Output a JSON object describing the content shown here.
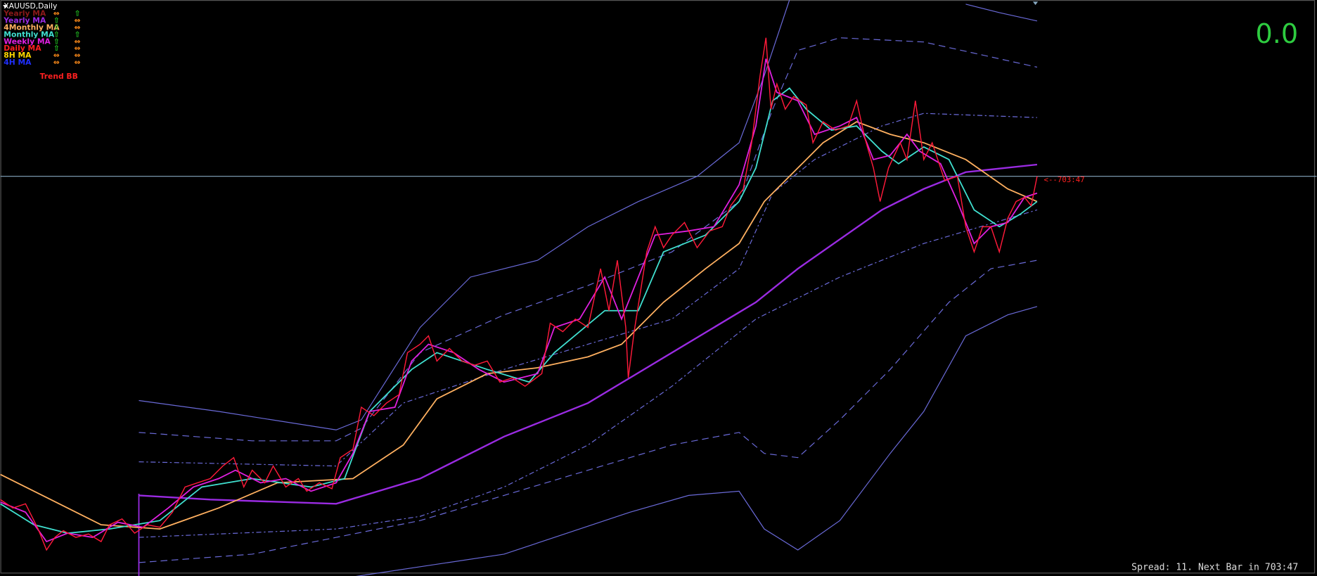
{
  "header": {
    "symbol": "XAUUSD,Daily"
  },
  "legend": {
    "rows": [
      {
        "label": "Yearly MA",
        "color": "#8b1a1a",
        "trend1": "⇔",
        "trend1_color": "#ff8c1a",
        "trend2": "⇧",
        "trend2_color": "#22c322"
      },
      {
        "label": "Yearly MA",
        "color": "#9a2be2",
        "trend1": "⇧",
        "trend1_color": "#22c322",
        "trend2": "⇔",
        "trend2_color": "#ff8c1a"
      },
      {
        "label": "4Monthly MA",
        "color": "#ffb060",
        "trend1": "⇧",
        "trend1_color": "#22c322",
        "trend2": "⇔",
        "trend2_color": "#ff8c1a"
      },
      {
        "label": "Monthly MA",
        "color": "#40e0d0",
        "trend1": "⇧",
        "trend1_color": "#22c322",
        "trend2": "⇧",
        "trend2_color": "#22c322"
      },
      {
        "label": "Weekly MA",
        "color": "#e020e0",
        "trend1": "⇧",
        "trend1_color": "#22c322",
        "trend2": "⇔",
        "trend2_color": "#ff8c1a"
      },
      {
        "label": "Daily MA",
        "color": "#ff2020",
        "trend1": "⇧",
        "trend1_color": "#22c322",
        "trend2": "⇔",
        "trend2_color": "#ff8c1a"
      },
      {
        "label": "8H MA",
        "color": "#ffd700",
        "trend1": "⇔",
        "trend1_color": "#ff8c1a",
        "trend2": "⇔",
        "trend2_color": "#ff8c1a"
      },
      {
        "label": "4H MA",
        "color": "#2030ff",
        "trend1": "⇔",
        "trend1_color": "#ff8c1a",
        "trend2": "⇔",
        "trend2_color": "#ff8c1a"
      }
    ]
  },
  "indicator": {
    "title": "Trend BB"
  },
  "counter": {
    "value_text": "0.0"
  },
  "price_marker": {
    "text": "<--703:47"
  },
  "status": {
    "text": "Spread: 11. Next Bar in 703:47"
  }
}
